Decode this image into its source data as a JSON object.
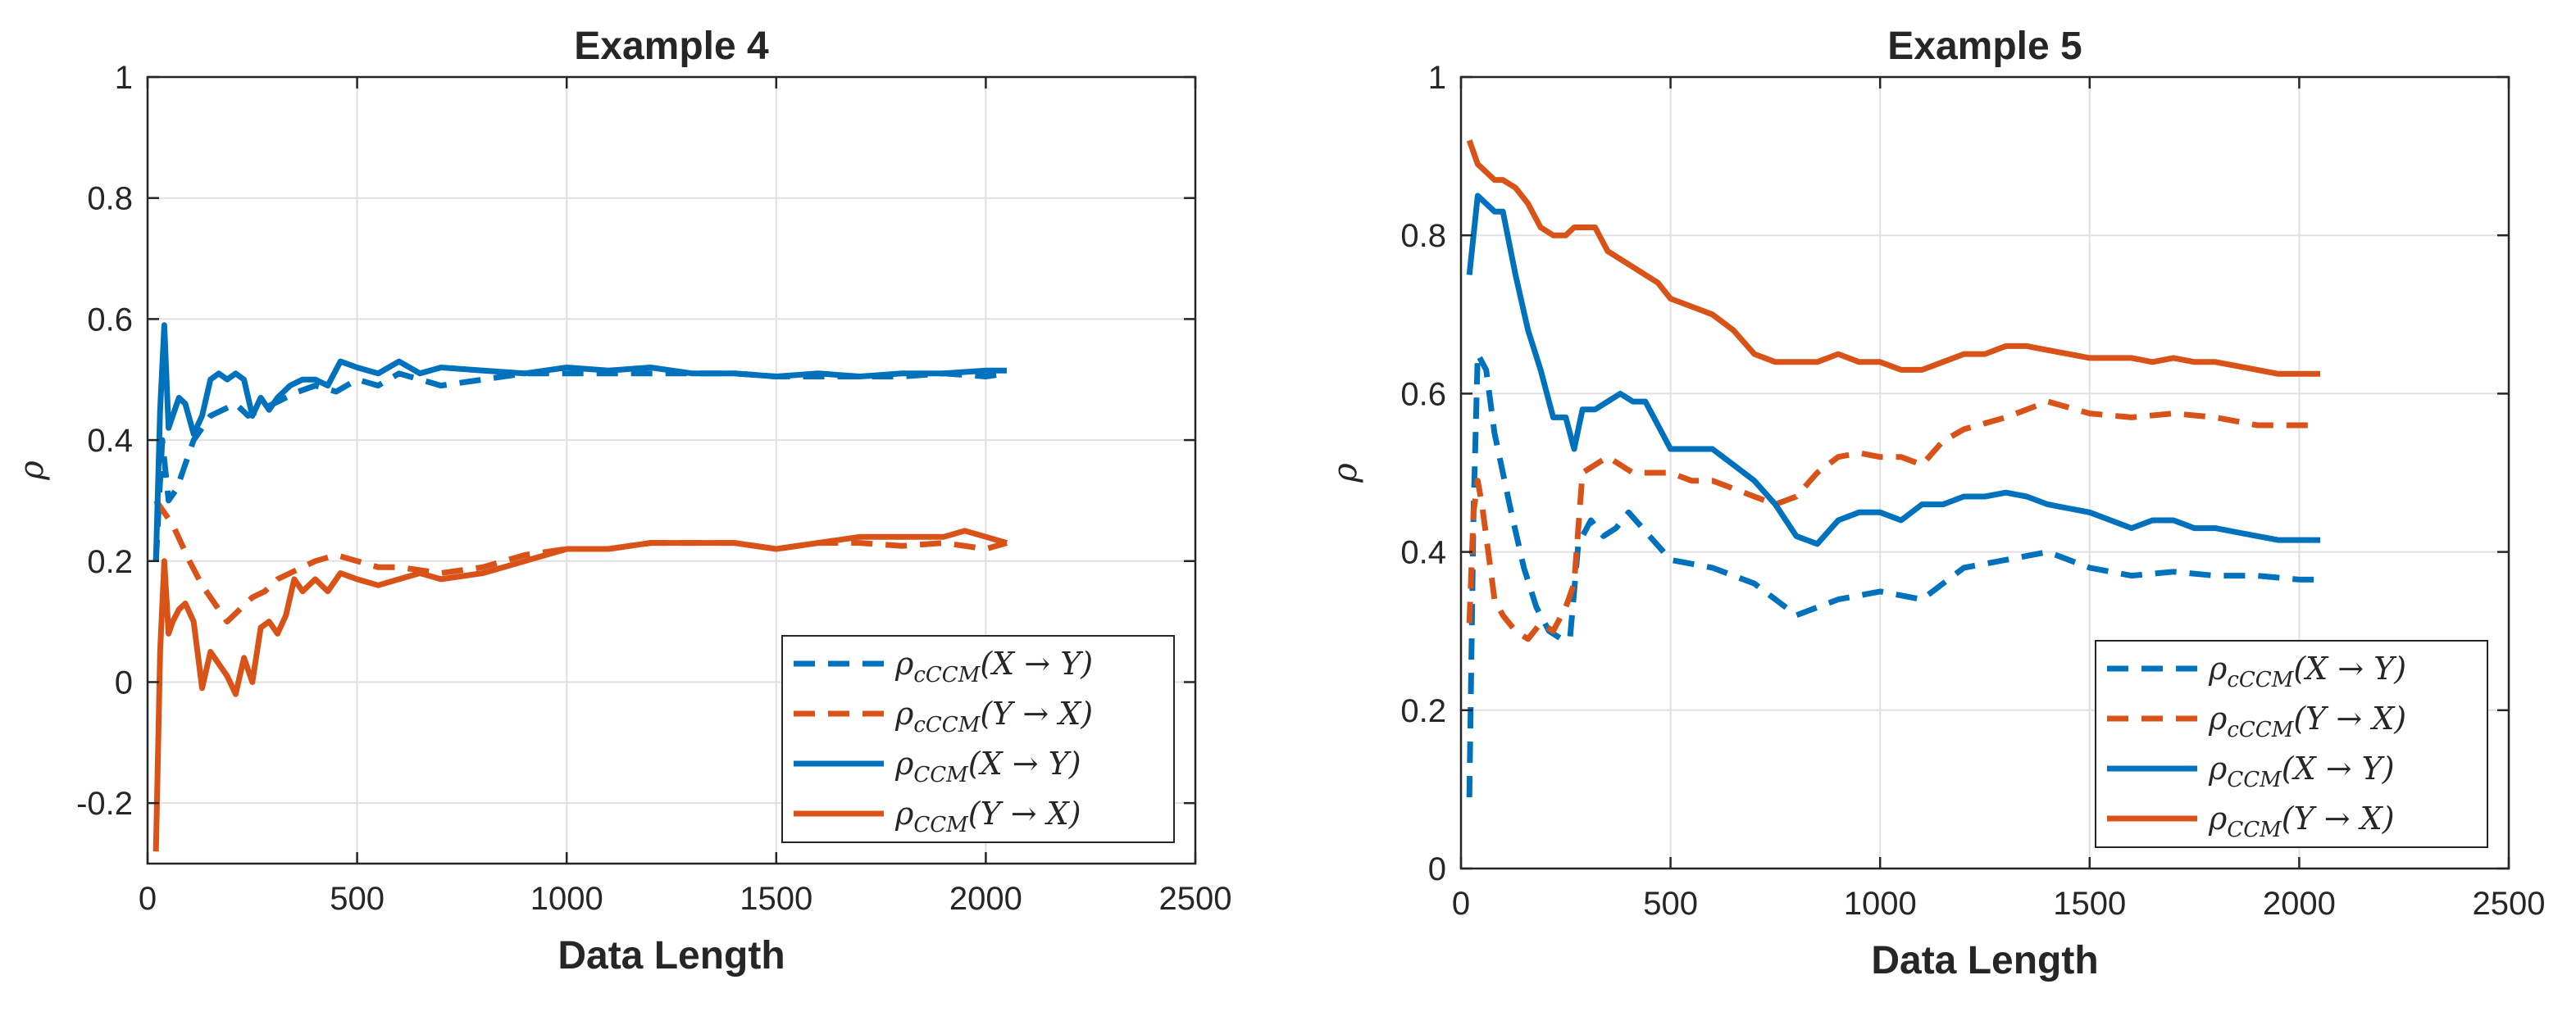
{
  "chart_data": [
    {
      "type": "line",
      "title": "Example 4",
      "xlabel": "Data Length",
      "ylabel": "ρ",
      "xlim": [
        0,
        2500
      ],
      "ylim": [
        -0.3,
        1
      ],
      "xticks": [
        0,
        500,
        1000,
        1500,
        2000,
        2500
      ],
      "xtick_labels": [
        "0",
        "500",
        "1000",
        "1500",
        "2000",
        "2500"
      ],
      "yticks": [
        -0.2,
        0,
        0.2,
        0.4,
        0.6,
        0.8,
        1
      ],
      "ytick_labels": [
        "-0.2",
        "0",
        "0.2",
        "0.4",
        "0.6",
        "0.8",
        "1"
      ],
      "grid": true,
      "legend_position": "bottom-right",
      "series": [
        {
          "name": "ρ_cCCM(X → Y)",
          "label_main": "ρ",
          "label_sub": "cCCM",
          "label_rest": "(X → Y)",
          "color": "#0072BD",
          "style": "dashed",
          "x": [
            20,
            35,
            50,
            70,
            90,
            110,
            130,
            150,
            180,
            210,
            240,
            270,
            300,
            330,
            360,
            400,
            450,
            500,
            550,
            600,
            700,
            800,
            900,
            1000,
            1100,
            1200,
            1300,
            1400,
            1500,
            1600,
            1700,
            1800,
            1900,
            2000,
            2050
          ],
          "values": [
            0.2,
            0.4,
            0.3,
            0.32,
            0.36,
            0.4,
            0.42,
            0.44,
            0.45,
            0.46,
            0.44,
            0.45,
            0.46,
            0.47,
            0.48,
            0.49,
            0.48,
            0.5,
            0.49,
            0.51,
            0.49,
            0.5,
            0.51,
            0.51,
            0.51,
            0.51,
            0.51,
            0.51,
            0.505,
            0.505,
            0.505,
            0.505,
            0.51,
            0.505,
            0.51
          ]
        },
        {
          "name": "ρ_cCCM(Y → X)",
          "label_main": "ρ",
          "label_sub": "cCCM",
          "label_rest": "(Y → X)",
          "color": "#D95319",
          "style": "dashed",
          "x": [
            20,
            40,
            60,
            80,
            100,
            130,
            160,
            190,
            220,
            250,
            280,
            310,
            340,
            370,
            400,
            450,
            500,
            550,
            600,
            700,
            800,
            900,
            1000,
            1100,
            1200,
            1300,
            1400,
            1500,
            1600,
            1700,
            1800,
            1900,
            2000,
            2050
          ],
          "values": [
            0.3,
            0.28,
            0.26,
            0.23,
            0.2,
            0.16,
            0.13,
            0.1,
            0.12,
            0.14,
            0.15,
            0.17,
            0.18,
            0.19,
            0.2,
            0.21,
            0.2,
            0.19,
            0.19,
            0.18,
            0.19,
            0.21,
            0.22,
            0.22,
            0.23,
            0.23,
            0.23,
            0.22,
            0.23,
            0.23,
            0.225,
            0.23,
            0.22,
            0.23
          ]
        },
        {
          "name": "ρ_CCM(X → Y)",
          "label_main": "ρ",
          "label_sub": "CCM",
          "label_rest": "(X → Y)",
          "color": "#0072BD",
          "style": "solid",
          "x": [
            20,
            30,
            40,
            50,
            60,
            75,
            90,
            110,
            130,
            150,
            170,
            190,
            210,
            230,
            250,
            270,
            290,
            310,
            340,
            370,
            400,
            430,
            460,
            500,
            550,
            600,
            650,
            700,
            800,
            900,
            1000,
            1100,
            1200,
            1300,
            1400,
            1500,
            1600,
            1700,
            1800,
            1900,
            2000,
            2050
          ],
          "values": [
            0.2,
            0.45,
            0.59,
            0.42,
            0.44,
            0.47,
            0.46,
            0.41,
            0.44,
            0.5,
            0.51,
            0.5,
            0.51,
            0.5,
            0.44,
            0.47,
            0.45,
            0.47,
            0.49,
            0.5,
            0.5,
            0.49,
            0.53,
            0.52,
            0.51,
            0.53,
            0.51,
            0.52,
            0.515,
            0.51,
            0.52,
            0.515,
            0.52,
            0.51,
            0.51,
            0.505,
            0.51,
            0.505,
            0.51,
            0.51,
            0.515,
            0.515
          ]
        },
        {
          "name": "ρ_CCM(Y → X)",
          "label_main": "ρ",
          "label_sub": "CCM",
          "label_rest": "(Y → X)",
          "color": "#D95319",
          "style": "solid",
          "x": [
            20,
            30,
            40,
            50,
            60,
            75,
            90,
            110,
            130,
            150,
            170,
            190,
            210,
            230,
            250,
            270,
            290,
            310,
            330,
            350,
            370,
            400,
            430,
            460,
            500,
            550,
            600,
            650,
            700,
            800,
            900,
            1000,
            1100,
            1200,
            1300,
            1400,
            1500,
            1600,
            1700,
            1800,
            1900,
            1950,
            2000,
            2050
          ],
          "values": [
            -0.28,
            0.05,
            0.2,
            0.08,
            0.1,
            0.12,
            0.13,
            0.1,
            -0.01,
            0.05,
            0.03,
            0.01,
            -0.02,
            0.04,
            0.0,
            0.09,
            0.1,
            0.08,
            0.11,
            0.17,
            0.15,
            0.17,
            0.15,
            0.18,
            0.17,
            0.16,
            0.17,
            0.18,
            0.17,
            0.18,
            0.2,
            0.22,
            0.22,
            0.23,
            0.23,
            0.23,
            0.22,
            0.23,
            0.24,
            0.24,
            0.24,
            0.25,
            0.24,
            0.23
          ]
        }
      ]
    },
    {
      "type": "line",
      "title": "Example 5",
      "xlabel": "Data Length",
      "ylabel": "ρ",
      "xlim": [
        0,
        2500
      ],
      "ylim": [
        0,
        1
      ],
      "xticks": [
        0,
        500,
        1000,
        1500,
        2000,
        2500
      ],
      "xtick_labels": [
        "0",
        "500",
        "1000",
        "1500",
        "2000",
        "2500"
      ],
      "yticks": [
        0,
        0.2,
        0.4,
        0.6,
        0.8,
        1
      ],
      "ytick_labels": [
        "0",
        "0.2",
        "0.4",
        "0.6",
        "0.8",
        "1"
      ],
      "grid": true,
      "legend_position": "bottom-right",
      "series": [
        {
          "name": "ρ_cCCM(X → Y)",
          "label_main": "ρ",
          "label_sub": "cCCM",
          "label_rest": "(X → Y)",
          "color": "#0072BD",
          "style": "dashed",
          "x": [
            20,
            30,
            40,
            60,
            80,
            100,
            120,
            150,
            180,
            210,
            240,
            260,
            280,
            310,
            340,
            370,
            400,
            450,
            500,
            600,
            700,
            800,
            900,
            1000,
            1100,
            1200,
            1300,
            1400,
            1500,
            1600,
            1700,
            1800,
            1900,
            2000,
            2050
          ],
          "values": [
            0.09,
            0.45,
            0.65,
            0.63,
            0.55,
            0.5,
            0.45,
            0.38,
            0.33,
            0.3,
            0.29,
            0.29,
            0.41,
            0.44,
            0.42,
            0.43,
            0.45,
            0.42,
            0.39,
            0.38,
            0.36,
            0.32,
            0.34,
            0.35,
            0.34,
            0.38,
            0.39,
            0.4,
            0.38,
            0.37,
            0.375,
            0.37,
            0.37,
            0.365,
            0.365
          ]
        },
        {
          "name": "ρ_cCCM(Y → X)",
          "label_main": "ρ",
          "label_sub": "cCCM",
          "label_rest": "(Y → X)",
          "color": "#D95319",
          "style": "dashed",
          "x": [
            20,
            30,
            40,
            50,
            60,
            70,
            80,
            100,
            130,
            160,
            190,
            220,
            250,
            270,
            290,
            320,
            350,
            380,
            410,
            450,
            500,
            550,
            600,
            650,
            700,
            750,
            800,
            850,
            900,
            950,
            1000,
            1050,
            1100,
            1150,
            1200,
            1300,
            1400,
            1500,
            1600,
            1700,
            1800,
            1900,
            2000,
            2050
          ],
          "values": [
            0.31,
            0.45,
            0.49,
            0.46,
            0.42,
            0.38,
            0.34,
            0.32,
            0.3,
            0.29,
            0.31,
            0.3,
            0.33,
            0.36,
            0.5,
            0.51,
            0.52,
            0.51,
            0.5,
            0.5,
            0.5,
            0.49,
            0.49,
            0.48,
            0.47,
            0.46,
            0.47,
            0.5,
            0.52,
            0.525,
            0.52,
            0.52,
            0.51,
            0.54,
            0.555,
            0.57,
            0.59,
            0.575,
            0.57,
            0.575,
            0.57,
            0.56,
            0.56,
            0.56
          ]
        },
        {
          "name": "ρ_CCM(X → Y)",
          "label_main": "ρ",
          "label_sub": "CCM",
          "label_rest": "(X → Y)",
          "color": "#0072BD",
          "style": "solid",
          "x": [
            20,
            40,
            60,
            80,
            100,
            130,
            160,
            190,
            220,
            250,
            270,
            290,
            320,
            350,
            380,
            410,
            440,
            470,
            500,
            550,
            600,
            650,
            700,
            750,
            800,
            850,
            900,
            950,
            1000,
            1050,
            1100,
            1150,
            1200,
            1250,
            1300,
            1350,
            1400,
            1450,
            1500,
            1550,
            1600,
            1650,
            1700,
            1750,
            1800,
            1850,
            1900,
            1950,
            2000,
            2050
          ],
          "values": [
            0.75,
            0.85,
            0.84,
            0.83,
            0.83,
            0.75,
            0.68,
            0.63,
            0.57,
            0.57,
            0.53,
            0.58,
            0.58,
            0.59,
            0.6,
            0.59,
            0.59,
            0.56,
            0.53,
            0.53,
            0.53,
            0.51,
            0.49,
            0.46,
            0.42,
            0.41,
            0.44,
            0.45,
            0.45,
            0.44,
            0.46,
            0.46,
            0.47,
            0.47,
            0.475,
            0.47,
            0.46,
            0.455,
            0.45,
            0.44,
            0.43,
            0.44,
            0.44,
            0.43,
            0.43,
            0.425,
            0.42,
            0.415,
            0.415,
            0.415
          ]
        },
        {
          "name": "ρ_CCM(Y → X)",
          "label_main": "ρ",
          "label_sub": "CCM",
          "label_rest": "(Y → X)",
          "color": "#D95319",
          "style": "solid",
          "x": [
            20,
            40,
            60,
            80,
            100,
            130,
            160,
            190,
            220,
            250,
            270,
            290,
            320,
            350,
            380,
            410,
            440,
            470,
            500,
            550,
            600,
            650,
            700,
            750,
            800,
            850,
            900,
            950,
            1000,
            1050,
            1100,
            1150,
            1200,
            1250,
            1300,
            1350,
            1400,
            1450,
            1500,
            1550,
            1600,
            1650,
            1700,
            1750,
            1800,
            1850,
            1900,
            1950,
            2000,
            2050
          ],
          "values": [
            0.92,
            0.89,
            0.88,
            0.87,
            0.87,
            0.86,
            0.84,
            0.81,
            0.8,
            0.8,
            0.81,
            0.81,
            0.81,
            0.78,
            0.77,
            0.76,
            0.75,
            0.74,
            0.72,
            0.71,
            0.7,
            0.68,
            0.65,
            0.64,
            0.64,
            0.64,
            0.65,
            0.64,
            0.64,
            0.63,
            0.63,
            0.64,
            0.65,
            0.65,
            0.66,
            0.66,
            0.655,
            0.65,
            0.645,
            0.645,
            0.645,
            0.64,
            0.645,
            0.64,
            0.64,
            0.635,
            0.63,
            0.625,
            0.625,
            0.625
          ]
        }
      ]
    }
  ]
}
